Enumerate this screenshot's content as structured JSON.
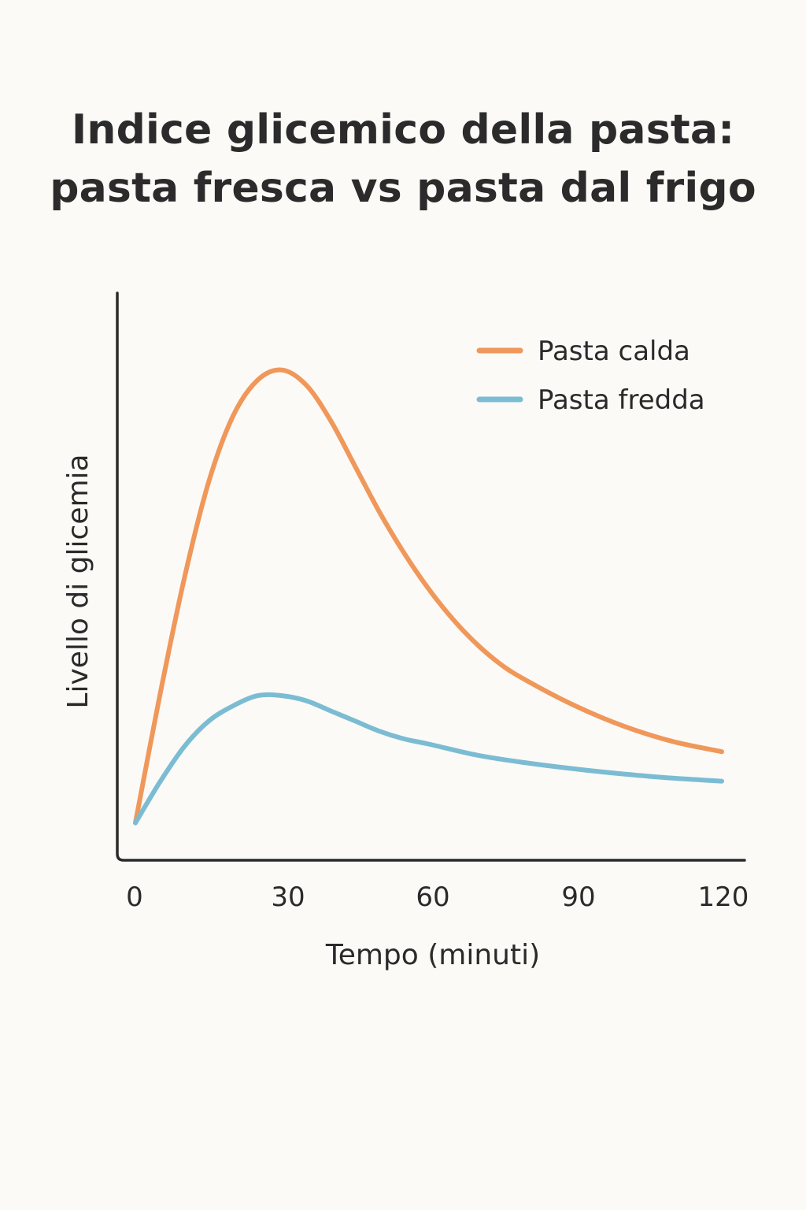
{
  "chart_data": {
    "type": "line",
    "title": [
      "Indice glicemico della pasta:",
      "pasta fresca vs pasta dal frigo"
    ],
    "xlabel": "Tempo (minuti)",
    "ylabel": "Livello di glicemia",
    "x_ticks": [
      0,
      30,
      60,
      90,
      120
    ],
    "xlim": [
      0,
      120
    ],
    "ylim": [
      0,
      100
    ],
    "grid": false,
    "legend_position": "top-right",
    "series": [
      {
        "name": "Pasta calda",
        "color": "#f0975a",
        "x": [
          0,
          5,
          10,
          15,
          20,
          25,
          30,
          35,
          40,
          45,
          50,
          55,
          60,
          65,
          70,
          75,
          80,
          90,
          100,
          110,
          120
        ],
        "y": [
          3,
          28,
          51,
          70,
          83,
          90,
          92,
          89,
          82,
          73,
          64,
          56,
          49,
          43,
          38,
          34,
          31,
          26,
          22,
          19,
          17
        ]
      },
      {
        "name": "Pasta fredda",
        "color": "#7bbcd3",
        "x": [
          0,
          5,
          10,
          15,
          20,
          25,
          30,
          35,
          40,
          45,
          50,
          55,
          60,
          70,
          80,
          90,
          100,
          110,
          120
        ],
        "y": [
          3,
          11,
          18,
          23,
          26,
          28,
          28,
          27,
          25,
          23,
          21,
          19.5,
          18.5,
          16.3,
          14.8,
          13.6,
          12.6,
          11.8,
          11.2
        ]
      }
    ]
  }
}
